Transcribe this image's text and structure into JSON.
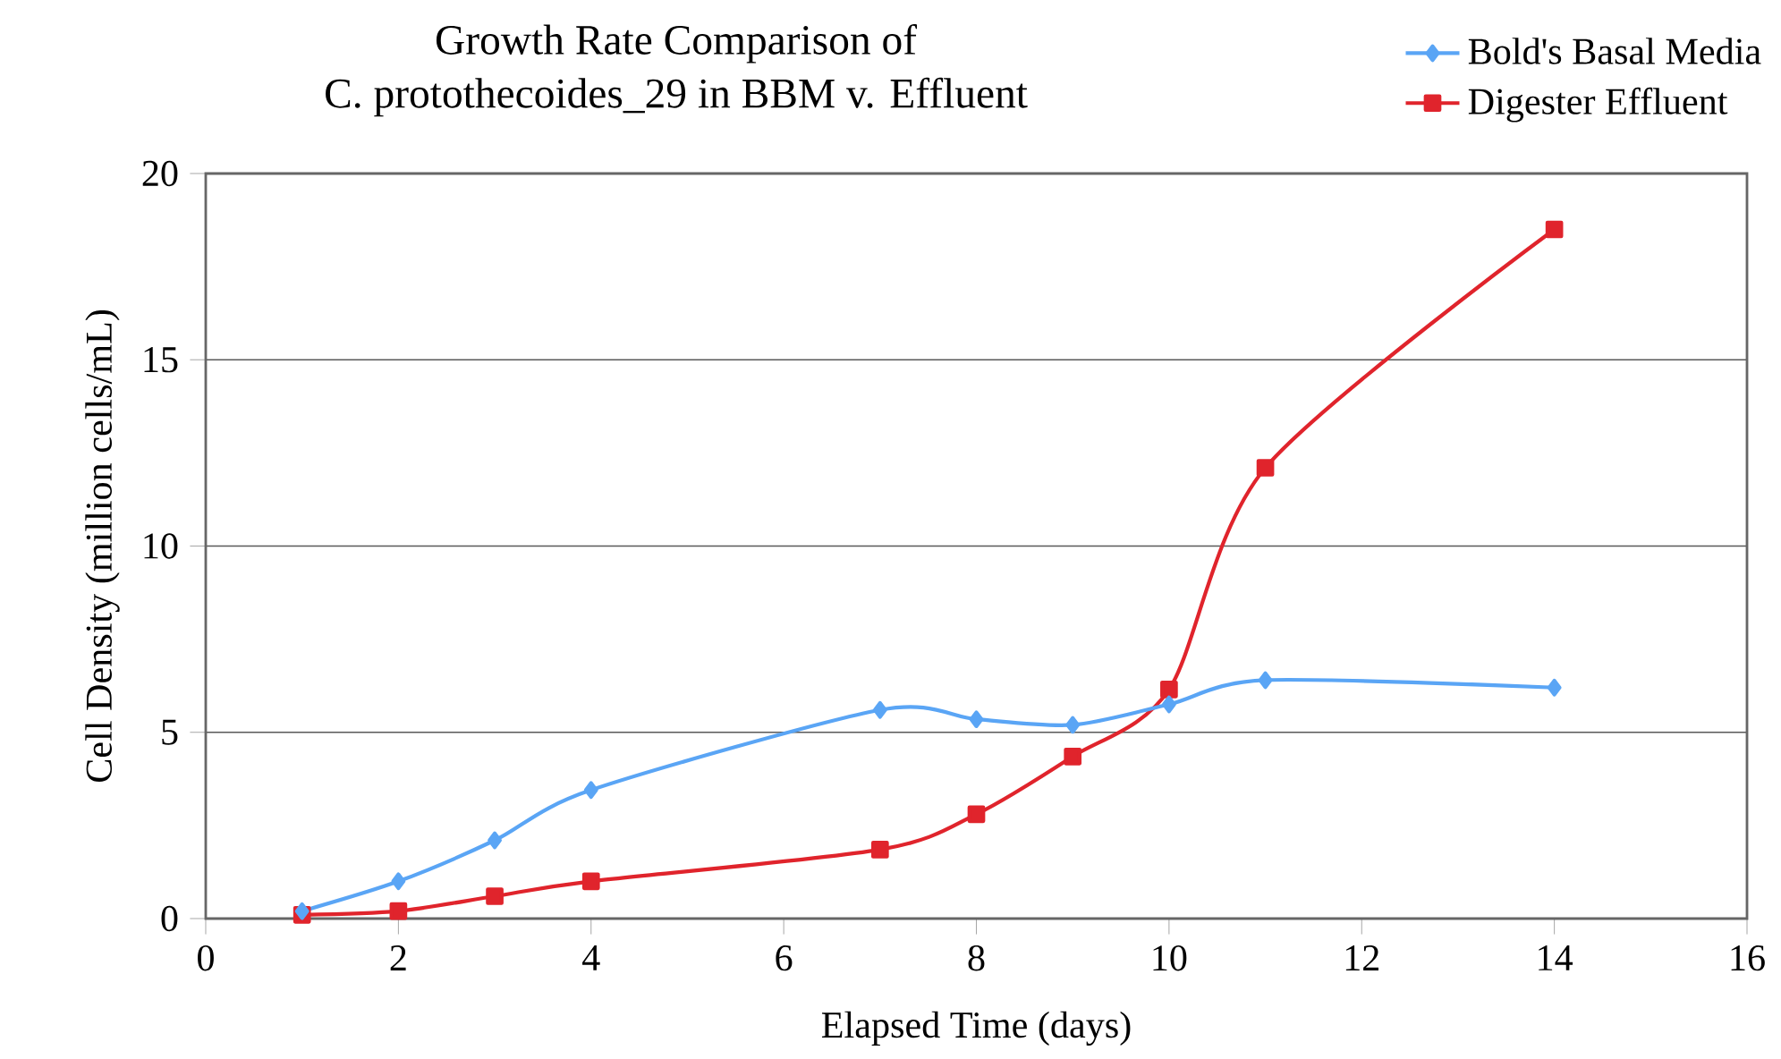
{
  "chart_data": {
    "type": "line",
    "title": "Growth Rate Comparison of",
    "subtitle": "C. protothecoides_29 in BBM v. Effluent",
    "xlabel": "Elapsed Time (days)",
    "ylabel": "Cell Density (million cells/mL)",
    "x": [
      1,
      2,
      3,
      4,
      7,
      8,
      9,
      10,
      11,
      14
    ],
    "series": [
      {
        "name": "Bold's Basal Media",
        "color": "#5aa5f5",
        "marker": "diamond",
        "values": [
          0.2,
          1.0,
          2.1,
          3.45,
          5.6,
          5.35,
          5.2,
          5.75,
          6.4,
          6.2
        ]
      },
      {
        "name": "Digester Effluent",
        "color": "#e0242c",
        "marker": "square",
        "values": [
          0.1,
          0.2,
          0.6,
          1.0,
          1.85,
          2.8,
          4.35,
          6.15,
          12.1,
          18.5
        ]
      }
    ],
    "xlim": [
      0,
      16
    ],
    "ylim": [
      0,
      20
    ],
    "xticks": [
      0,
      2,
      4,
      6,
      8,
      10,
      12,
      14,
      16
    ],
    "yticks": [
      0,
      5,
      10,
      15,
      20
    ],
    "grid": "y",
    "legend": "top right"
  }
}
